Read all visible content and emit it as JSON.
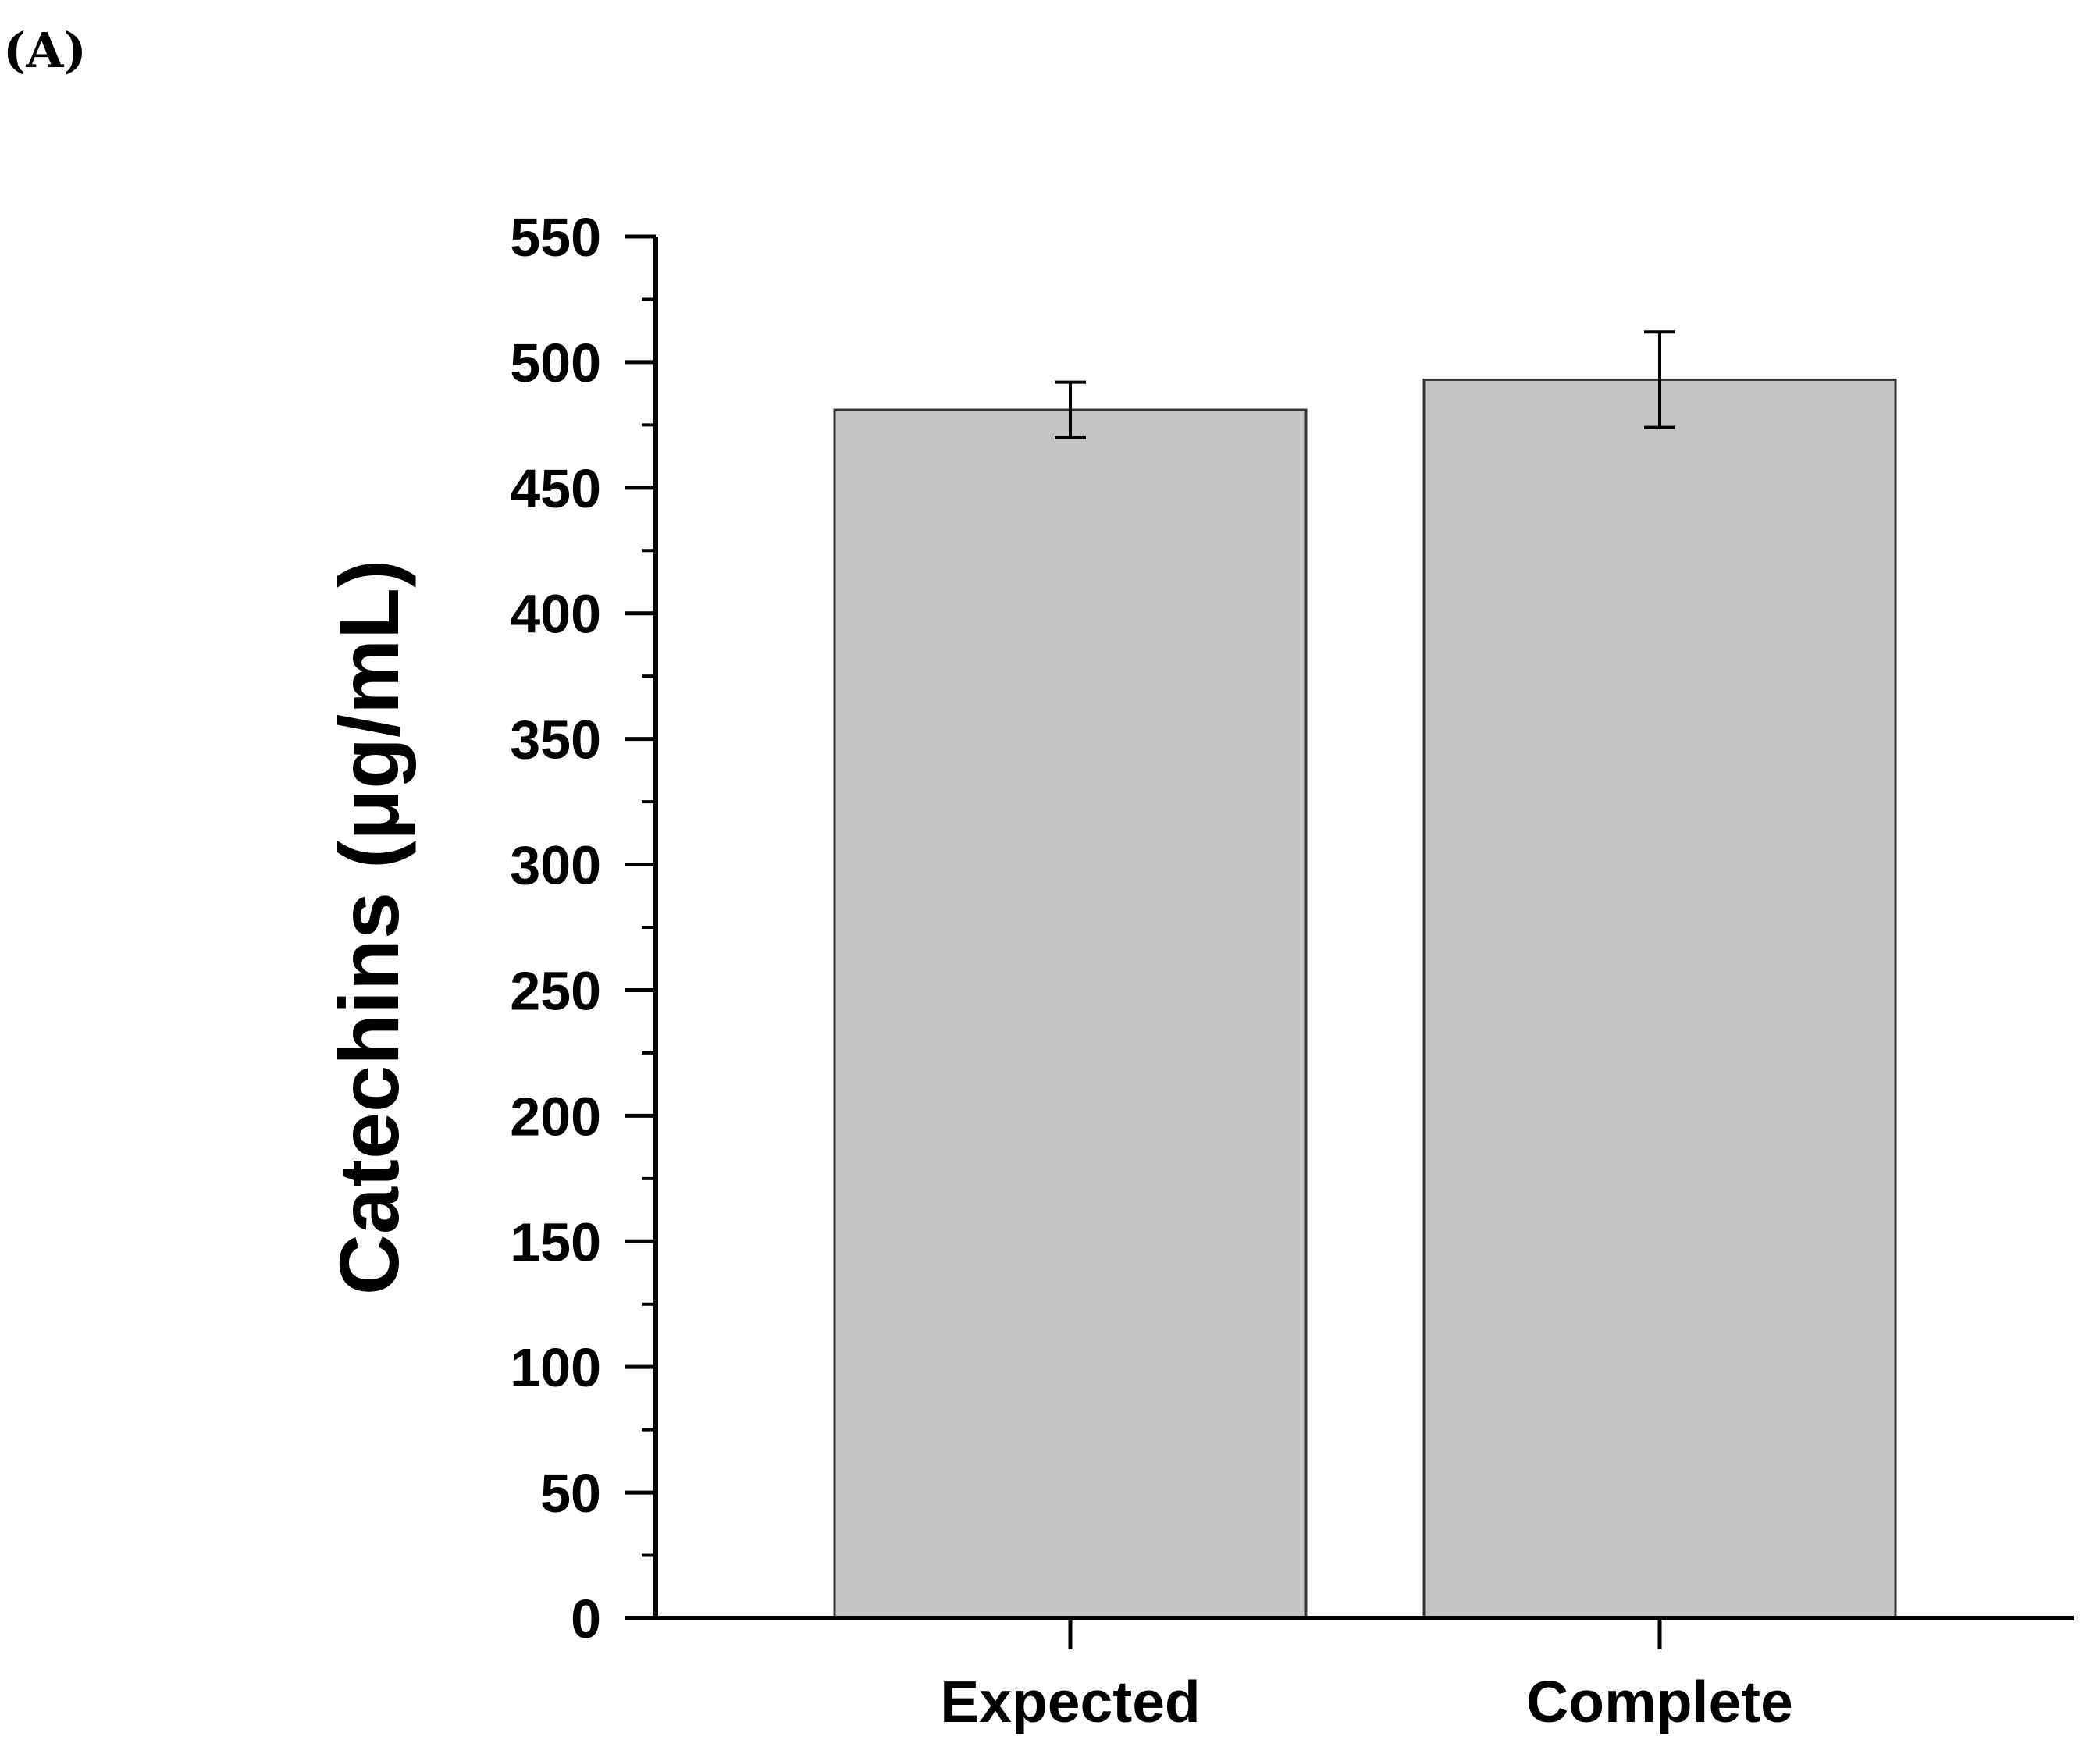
{
  "panel_label": "(A)",
  "chart_data": {
    "type": "bar",
    "categories": [
      "Expected",
      "Complete"
    ],
    "values": [
      481,
      493
    ],
    "errors": [
      11,
      19
    ],
    "title": "",
    "xlabel": "",
    "ylabel": "Catechins (μg/mL)",
    "ylim": [
      0,
      550
    ],
    "yticks": [
      0,
      50,
      100,
      150,
      200,
      250,
      300,
      350,
      400,
      450,
      500,
      550
    ],
    "bar_color": "#c4c4c4",
    "bar_edge_color": "#333333",
    "grid": false
  }
}
